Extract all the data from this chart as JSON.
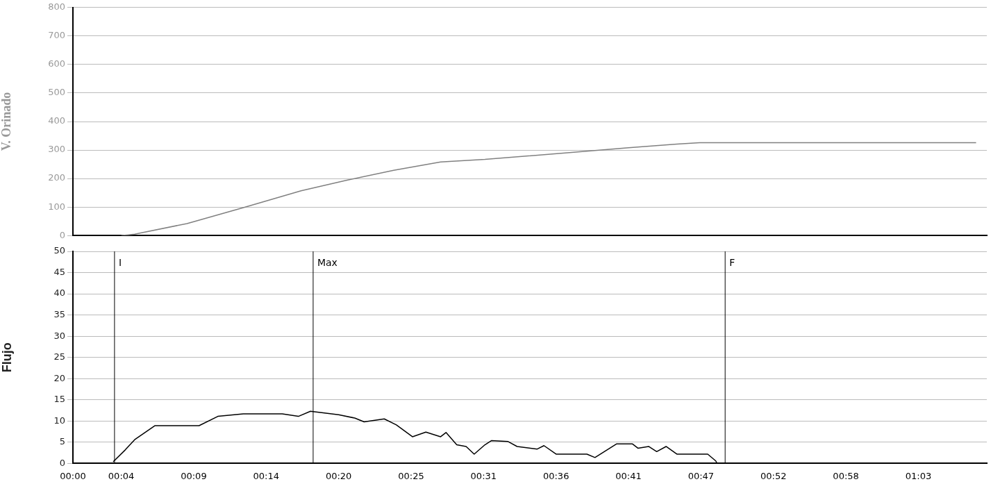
{
  "chart_data": [
    {
      "type": "line",
      "ylabel": "V. Orinado",
      "ylim": [
        0,
        800
      ],
      "yticks": [
        0,
        100,
        200,
        300,
        400,
        500,
        600,
        700,
        800
      ],
      "xlim": [
        0,
        68.1
      ],
      "tick_labels": "y",
      "grid": "y",
      "legend": false,
      "x": [
        3.6,
        4.6,
        8.5,
        12.7,
        17.0,
        20.3,
        23.9,
        27.4,
        30.7,
        37.8,
        41.4,
        45.0,
        46.7,
        67.3
      ],
      "series": [
        {
          "color": "#808080",
          "values": [
            0,
            5,
            42,
            98,
            157,
            193,
            229,
            258,
            267,
            294,
            308,
            321,
            326,
            326
          ]
        }
      ]
    },
    {
      "type": "line",
      "ylabel": "Flujo",
      "ylim": [
        0,
        50
      ],
      "yticks": [
        0,
        5,
        10,
        15,
        20,
        25,
        30,
        35,
        40,
        45,
        50
      ],
      "xlim": [
        0,
        68.1
      ],
      "xticks": [
        {
          "value": 0,
          "label": "00:00"
        },
        {
          "value": 3.6,
          "label": "00:04"
        },
        {
          "value": 9.0,
          "label": "00:09"
        },
        {
          "value": 14.4,
          "label": "00:14"
        },
        {
          "value": 19.8,
          "label": "00:20"
        },
        {
          "value": 25.2,
          "label": "00:25"
        },
        {
          "value": 30.6,
          "label": "00:31"
        },
        {
          "value": 36.0,
          "label": "00:36"
        },
        {
          "value": 41.4,
          "label": "00:41"
        },
        {
          "value": 46.8,
          "label": "00:47"
        },
        {
          "value": 52.2,
          "label": "00:52"
        },
        {
          "value": 57.6,
          "label": "00:58"
        },
        {
          "value": 63.0,
          "label": "01:03"
        }
      ],
      "grid": "y",
      "legend": false,
      "ref_lines": [
        {
          "axis": "x",
          "value": 3.1,
          "label": "I",
          "color": "#000000"
        },
        {
          "axis": "x",
          "value": 17.9,
          "label": "Max",
          "color": "#000000"
        },
        {
          "axis": "x",
          "value": 48.6,
          "label": "F",
          "color": "#000000"
        }
      ],
      "x": [
        3.0,
        3.9,
        4.6,
        6.1,
        9.4,
        10.8,
        12.7,
        15.6,
        16.8,
        17.7,
        19.8,
        21.0,
        21.7,
        23.2,
        24.1,
        25.3,
        26.3,
        27.4,
        27.8,
        28.6,
        29.3,
        29.9,
        30.7,
        31.2,
        32.4,
        33.1,
        34.6,
        35.1,
        36.0,
        38.3,
        38.9,
        40.5,
        41.7,
        42.1,
        42.9,
        43.5,
        44.2,
        45.0,
        47.3,
        47.9,
        48.0
      ],
      "series": [
        {
          "color": "#000000",
          "values": [
            0.4,
            3.2,
            5.6,
            8.9,
            8.9,
            11.1,
            11.7,
            11.7,
            11.1,
            12.3,
            11.5,
            10.7,
            9.8,
            10.5,
            9.1,
            6.3,
            7.4,
            6.3,
            7.3,
            4.4,
            4.0,
            2.2,
            4.4,
            5.4,
            5.2,
            4.0,
            3.4,
            4.2,
            2.2,
            2.2,
            1.4,
            4.6,
            4.6,
            3.6,
            4.0,
            2.8,
            4.0,
            2.2,
            2.2,
            0.6,
            0
          ]
        }
      ]
    }
  ]
}
